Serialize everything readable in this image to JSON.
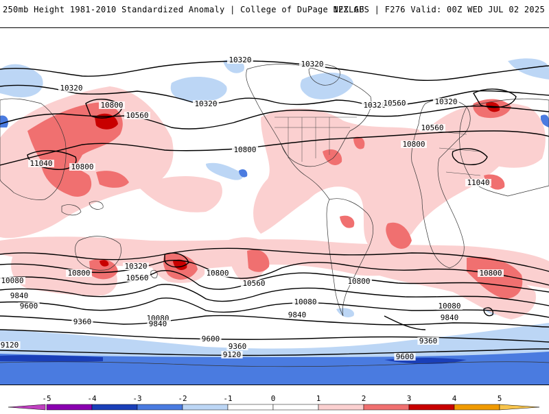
{
  "header": {
    "title_left": "250mb Height 1981-2010 Standardized Anomaly | College of DuPage NEXLAB",
    "title_right": "12Z GFS | F276 Valid: 00Z WED JUL 02 2025"
  },
  "map": {
    "contour_labels": [
      "10320",
      "10320",
      "10320",
      "10320",
      "10320",
      "10320",
      "10320",
      "10560",
      "10560",
      "10560",
      "10560",
      "10560",
      "10800",
      "10800",
      "10800",
      "10800",
      "10800",
      "10800",
      "10800",
      "10800",
      "11040",
      "11040",
      "10080",
      "10080",
      "10080",
      "10080",
      "9840",
      "9840",
      "9840",
      "9840",
      "9600",
      "9600",
      "9600",
      "9360",
      "9360",
      "9360",
      "9120",
      "9120"
    ]
  },
  "colorbar": {
    "ticks": [
      "-5",
      "-4",
      "-3",
      "-2",
      "-1",
      "0",
      "1",
      "2",
      "3",
      "4",
      "5"
    ],
    "colors": {
      "neg5": "#c040c0",
      "neg4": "#8a00b0",
      "neg3": "#1a3fb8",
      "neg2": "#4a7be0",
      "neg1": "#bcd6f5",
      "neutral": "#ffffff",
      "pos1": "#fbd0d0",
      "pos2": "#f07070",
      "pos3": "#c80000",
      "pos4": "#f09a00",
      "pos5": "#f7c44d"
    }
  }
}
